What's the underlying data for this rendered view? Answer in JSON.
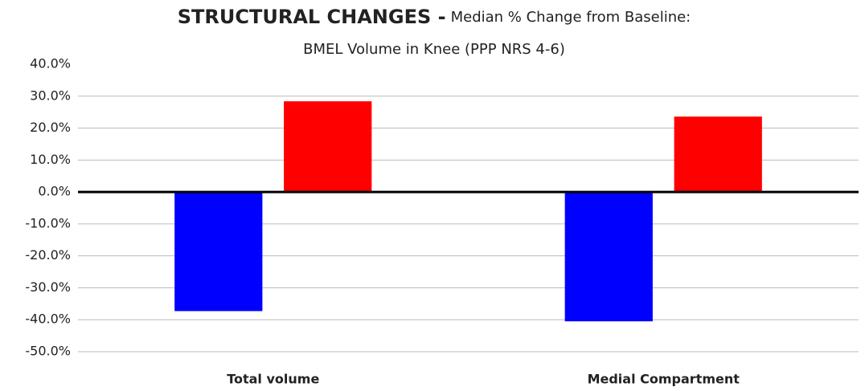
{
  "chart_data": {
    "type": "bar",
    "title": "STRUCTURAL CHANGES -",
    "subtitle": [
      "Median % Change from Baseline:",
      "BMEL  Volume in Knee (PPP NRS 4-6)"
    ],
    "categories": [
      "Total volume",
      "Medial Compartment"
    ],
    "series": [
      {
        "color": "#0000ff",
        "values": [
          -37.3,
          -40.5
        ]
      },
      {
        "color": "#ff0000",
        "values": [
          28.4,
          23.6
        ]
      }
    ],
    "ylim": [
      -50,
      40
    ],
    "yticks": [
      {
        "value": -50,
        "label": "-50.0%"
      },
      {
        "value": -40,
        "label": "-40.0%"
      },
      {
        "value": -30,
        "label": "-30.0%"
      },
      {
        "value": -20,
        "label": "-20.0%"
      },
      {
        "value": -10,
        "label": "-10.0%"
      },
      {
        "value": 0,
        "label": "0.0%"
      },
      {
        "value": 10,
        "label": "10.0%"
      },
      {
        "value": 20,
        "label": "20.0%"
      },
      {
        "value": 30,
        "label": "30.0%"
      },
      {
        "value": 40,
        "label": "40.0%"
      }
    ],
    "grid": true
  }
}
